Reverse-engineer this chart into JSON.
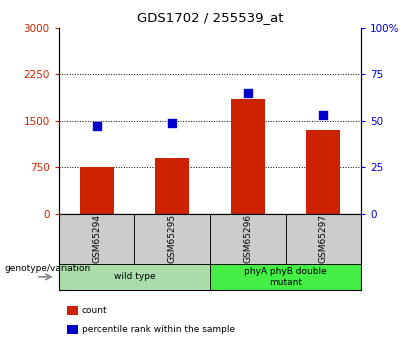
{
  "title": "GDS1702 / 255539_at",
  "samples": [
    "GSM65294",
    "GSM65295",
    "GSM65296",
    "GSM65297"
  ],
  "counts": [
    750,
    900,
    1850,
    1350
  ],
  "percentiles": [
    47,
    49,
    65,
    53
  ],
  "bar_color": "#cc2200",
  "dot_color": "#0000cc",
  "left_ylim": [
    0,
    3000
  ],
  "right_ylim": [
    0,
    100
  ],
  "left_yticks": [
    0,
    750,
    1500,
    2250,
    3000
  ],
  "right_yticks": [
    0,
    25,
    50,
    75,
    100
  ],
  "right_yticklabels": [
    "0",
    "25",
    "50",
    "75",
    "100%"
  ],
  "hlines": [
    750,
    1500,
    2250
  ],
  "groups": [
    {
      "label": "wild type",
      "indices": [
        0,
        1
      ],
      "color": "#aaddaa"
    },
    {
      "label": "phyA phyB double\nmutant",
      "indices": [
        2,
        3
      ],
      "color": "#44ee44"
    }
  ],
  "sample_box_color": "#cccccc",
  "genotype_label": "genotype/variation",
  "legend_items": [
    {
      "label": "count",
      "color": "#cc2200"
    },
    {
      "label": "percentile rank within the sample",
      "color": "#0000cc"
    }
  ],
  "left_label_color": "#cc2200",
  "right_label_color": "#0000cc"
}
